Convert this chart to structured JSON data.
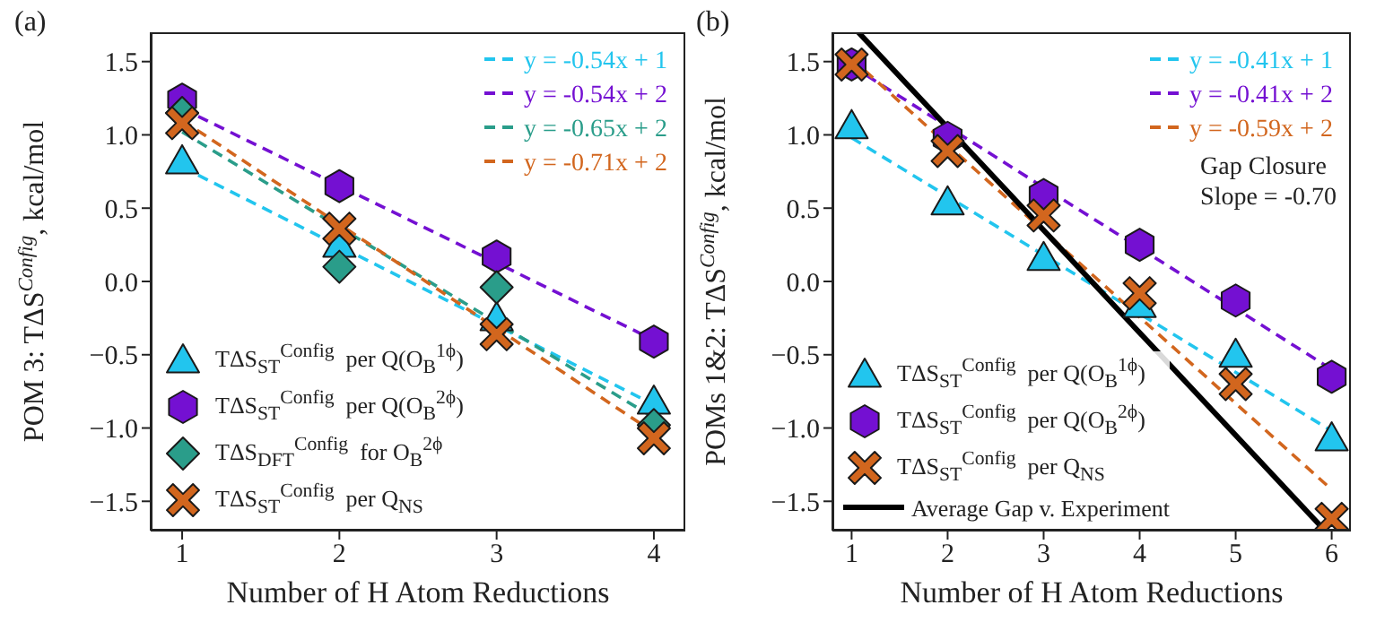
{
  "chart_data": [
    {
      "type": "scatter",
      "title": "(a)",
      "xlabel": "Number of H Atom Reductions",
      "ylabel": "POM 3:  TΔS$^{Config}$, kcal/mol",
      "xlim": [
        0.8,
        4.2
      ],
      "xticks": [
        1,
        2,
        3,
        4
      ],
      "ylim": [
        -1.7,
        1.7
      ],
      "yticks": [
        {
          "value": -1.5,
          "label": "−1.5"
        },
        {
          "value": -1,
          "label": "−1.0"
        },
        {
          "value": -0.5,
          "label": "−0.5"
        },
        {
          "value": 0,
          "label": "0.0"
        },
        {
          "value": 0.5,
          "label": "0.5"
        },
        {
          "value": 1,
          "label": "1.0"
        },
        {
          "value": 1.5,
          "label": "1.5"
        }
      ],
      "grid": false,
      "legend": "bottom left",
      "series": [
        {
          "name": "TΔS$_{ST}$$^{Config}$  per Q(O$_{B}$$^{1ϕ}$)",
          "type": "scatter",
          "marker": "triangle",
          "color": "#22c5ee",
          "x": [
            1,
            2,
            3,
            4
          ],
          "values": [
            0.82,
            0.25,
            -0.25,
            -0.82
          ]
        },
        {
          "name": "TΔS$_{ST}$$^{Config}$  per Q(O$_{B}$$^{2ϕ}$)",
          "type": "scatter",
          "color": "#7410d2",
          "x": [
            1,
            2,
            3,
            4
          ],
          "values": [
            1.24,
            0.65,
            0.17,
            -0.41
          ]
        },
        {
          "name": "TΔS$_{DFT}$$^{Config}$  for O$_{B}$$^{2ϕ}$",
          "type": "scatter",
          "marker": "diamond",
          "color": "#2a9d8a",
          "x": [
            1,
            2,
            3,
            4
          ],
          "values": [
            1.15,
            0.1,
            -0.04,
            -0.98
          ]
        },
        {
          "name": "TΔS$_{ST}$$^{Config}$  per Q$_{NS}$",
          "type": "scatter",
          "marker": "cross",
          "color": "#d2661e",
          "x": [
            1,
            2,
            3,
            4
          ],
          "values": [
            1.08,
            0.36,
            -0.36,
            -1.07
          ]
        },
        {
          "name": "y = -0.54x + 1",
          "type": "line",
          "marker": "none",
          "line_style": "dashed",
          "color": "#22c5ee",
          "x": [
            1,
            4
          ],
          "values": [
            0.78,
            -0.84
          ]
        },
        {
          "name": "y = -0.54x + 2",
          "type": "line",
          "marker": "none",
          "line_style": "dashed",
          "color": "#7410d2",
          "x": [
            1,
            4
          ],
          "values": [
            1.18,
            -0.4
          ]
        },
        {
          "name": "y = -0.65x + 2",
          "type": "line",
          "marker": "none",
          "line_style": "dashed",
          "color": "#2a9d8a",
          "x": [
            1,
            4
          ],
          "values": [
            1.02,
            -0.93
          ]
        },
        {
          "name": "y = -0.71x + 2",
          "type": "line",
          "marker": "none",
          "line_style": "dashed",
          "color": "#d2661e",
          "x": [
            1,
            4
          ],
          "values": [
            1.1,
            -1.03
          ]
        }
      ]
    },
    {
      "type": "scatter",
      "title": "(b)",
      "xlabel": "Number of H Atom Reductions",
      "ylabel": "POMs 1&2:  TΔS$^{Config}$, kcal/mol",
      "xlim": [
        0.8,
        6.2
      ],
      "xticks": [
        1,
        2,
        3,
        4,
        5,
        6
      ],
      "ylim": [
        -1.7,
        1.7
      ],
      "yticks": [
        {
          "value": -1.5,
          "label": "−1.5"
        },
        {
          "value": -1,
          "label": "−1.0"
        },
        {
          "value": -0.5,
          "label": "−0.5"
        },
        {
          "value": 0,
          "label": "0.0"
        },
        {
          "value": 0.5,
          "label": "0.5"
        },
        {
          "value": 1,
          "label": "1.0"
        },
        {
          "value": 1.5,
          "label": "1.5"
        }
      ],
      "grid": false,
      "legend": "bottom left",
      "annotations": [
        "Gap Closure",
        "Slope = -0.70"
      ],
      "series": [
        {
          "name": "TΔS$_{ST}$$^{Config}$  per Q(O$_{B}$$^{1ϕ}$)",
          "type": "scatter",
          "marker": "triangle",
          "color": "#22c5ee",
          "x": [
            1,
            2,
            3,
            4,
            5,
            6
          ],
          "values": [
            1.06,
            0.54,
            0.16,
            -0.16,
            -0.5,
            -1.07
          ]
        },
        {
          "name": "TΔS$_{ST}$$^{Config}$  per Q(O$_{B}$$^{2ϕ}$)",
          "type": "scatter",
          "color": "#7410d2",
          "x": [
            1,
            2,
            3,
            4,
            5,
            6
          ],
          "values": [
            1.48,
            0.98,
            0.59,
            0.25,
            -0.13,
            -0.65
          ]
        },
        {
          "name": "TΔS$_{ST}$$^{Config}$  per Q$_{NS}$",
          "type": "scatter",
          "marker": "cross",
          "color": "#d2661e",
          "x": [
            1,
            2,
            3,
            4,
            5,
            6
          ],
          "values": [
            1.48,
            0.89,
            0.45,
            -0.08,
            -0.7,
            -1.62
          ]
        },
        {
          "name": "y = -0.41x + 1",
          "type": "line",
          "marker": "none",
          "line_style": "dashed",
          "color": "#22c5ee",
          "x": [
            1,
            6
          ],
          "values": [
            0.98,
            -1.02
          ]
        },
        {
          "name": "y = -0.41x + 2",
          "type": "line",
          "marker": "none",
          "line_style": "dashed",
          "color": "#7410d2",
          "x": [
            1,
            6
          ],
          "values": [
            1.47,
            -0.6
          ]
        },
        {
          "name": "y = -0.59x + 2",
          "type": "line",
          "marker": "none",
          "line_style": "dashed",
          "color": "#d2661e",
          "x": [
            1,
            6
          ],
          "values": [
            1.52,
            -1.42
          ]
        },
        {
          "name": "Average Gap v. Experiment",
          "type": "line",
          "marker": "none",
          "line_style": "solid",
          "color": "#000000",
          "x": [
            1.07,
            5.93
          ],
          "values": [
            1.7,
            -1.7
          ]
        }
      ]
    }
  ]
}
